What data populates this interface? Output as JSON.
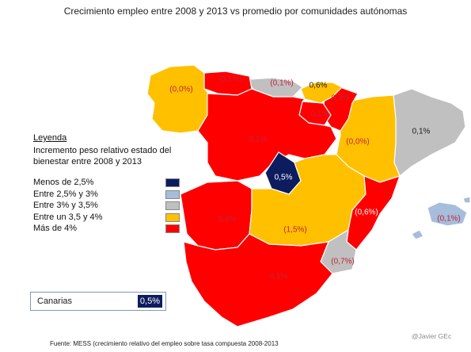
{
  "title": "Crecimiento empleo entre 2008 y 2013 vs promedio por comunidades autónomas",
  "colors": {
    "red": "#ff0000",
    "orange": "#ffc000",
    "light_gray": "#c0c0c0",
    "light_blue": "#a6bddb",
    "navy": "#0d1c5e",
    "border": "#ffffff"
  },
  "legend": {
    "title": "Leyenda",
    "subtitle": "Incremento peso relativo estado del bienestar entre 2008 y 2013",
    "items": [
      {
        "label": "Menos de 2,5%",
        "color": "#0d1c5e"
      },
      {
        "label": "Entre 2,5% y 3%",
        "color": "#a6bddb"
      },
      {
        "label": "Entre 3% y 3,5%",
        "color": "#c0c0c0"
      },
      {
        "label": "Entre un 3,5 y 4%",
        "color": "#ffc000"
      },
      {
        "label": "Más de 4%",
        "color": "#ff0000"
      }
    ]
  },
  "regions": [
    {
      "name": "Galicia",
      "value_label": "(0,0%)",
      "color": "#ffc000"
    },
    {
      "name": "Asturias",
      "value_label": "(0,1%)",
      "color": "#ff0000"
    },
    {
      "name": "Cantabria",
      "value_label": "(0,1%)",
      "color": "#c0c0c0"
    },
    {
      "name": "País Vasco",
      "value_label": "0,6%",
      "color": "#ffc000"
    },
    {
      "name": "Navarra",
      "value_label": "0,3%",
      "color": "#ff0000"
    },
    {
      "name": "La Rioja",
      "value_label": "0,1%",
      "color": "#ff0000"
    },
    {
      "name": "Castilla y León",
      "value_label": "0,1%",
      "color": "#ff0000"
    },
    {
      "name": "Aragón",
      "value_label": "(0,0%)",
      "color": "#ffc000"
    },
    {
      "name": "Cataluña",
      "value_label": "0,1%",
      "color": "#c0c0c0"
    },
    {
      "name": "Madrid",
      "value_label": "0,5%",
      "color": "#0d1c5e"
    },
    {
      "name": "Extremadura",
      "value_label": "0,8%",
      "color": "#ff0000"
    },
    {
      "name": "Castilla-La Mancha",
      "value_label": "(1,5%)",
      "color": "#ffc000"
    },
    {
      "name": "C. Valenciana",
      "value_label": "(0,6%)",
      "color": "#ff0000"
    },
    {
      "name": "Murcia",
      "value_label": "(0,7%)",
      "color": "#c0c0c0"
    },
    {
      "name": "Andalucía",
      "value_label": "0,1%",
      "color": "#ff0000"
    },
    {
      "name": "Baleares",
      "value_label": "(0,1%)",
      "color": "#a6bddb"
    }
  ],
  "canarias": {
    "label": "Canarias",
    "value_label": "0,5%",
    "color": "#0d1c5e"
  },
  "source": "Fuente: MESS (crecimiento relativo del empleo sobre tasa compuesta 2008-2013",
  "credit": "@Javier GEc"
}
